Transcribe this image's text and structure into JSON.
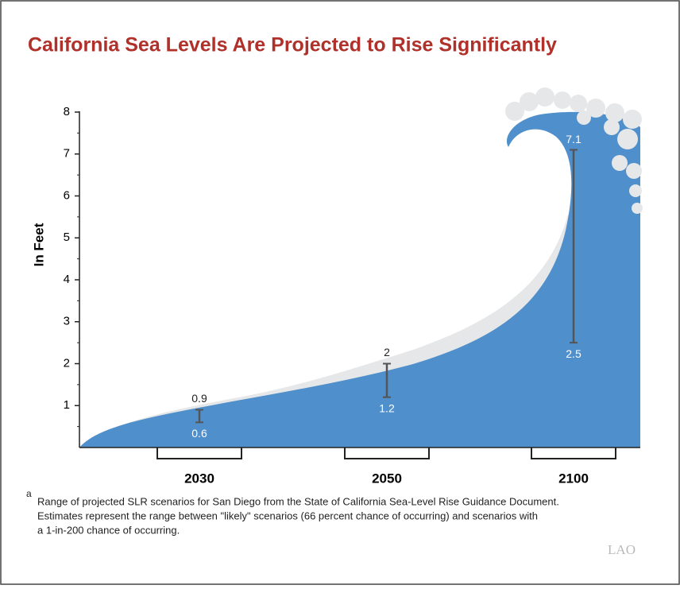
{
  "chart_data": {
    "type": "range",
    "title": "California Sea Levels Are Projected to Rise Significantly",
    "y_label": "In Feet",
    "categories": [
      "2030",
      "2050",
      "2100"
    ],
    "series": [
      {
        "values": [
          0.6,
          1.2,
          2.5
        ]
      },
      {
        "values": [
          0.9,
          2.0,
          7.1
        ]
      }
    ],
    "ylim": [
      0,
      8
    ],
    "yticks": [
      1,
      2,
      3,
      4,
      5,
      6,
      7,
      8
    ],
    "color": "#555555",
    "footnote": {
      "marker": "a",
      "lines": [
        "Range of projected SLR scenarios for San Diego from the State of California Sea-Level Rise Guidance Document.",
        "Estimates represent the range between \"likely\" scenarios (66 percent chance of occurring) and scenarios with",
        "a 1-in-200 chance of occurring."
      ]
    },
    "source": "LAO"
  }
}
